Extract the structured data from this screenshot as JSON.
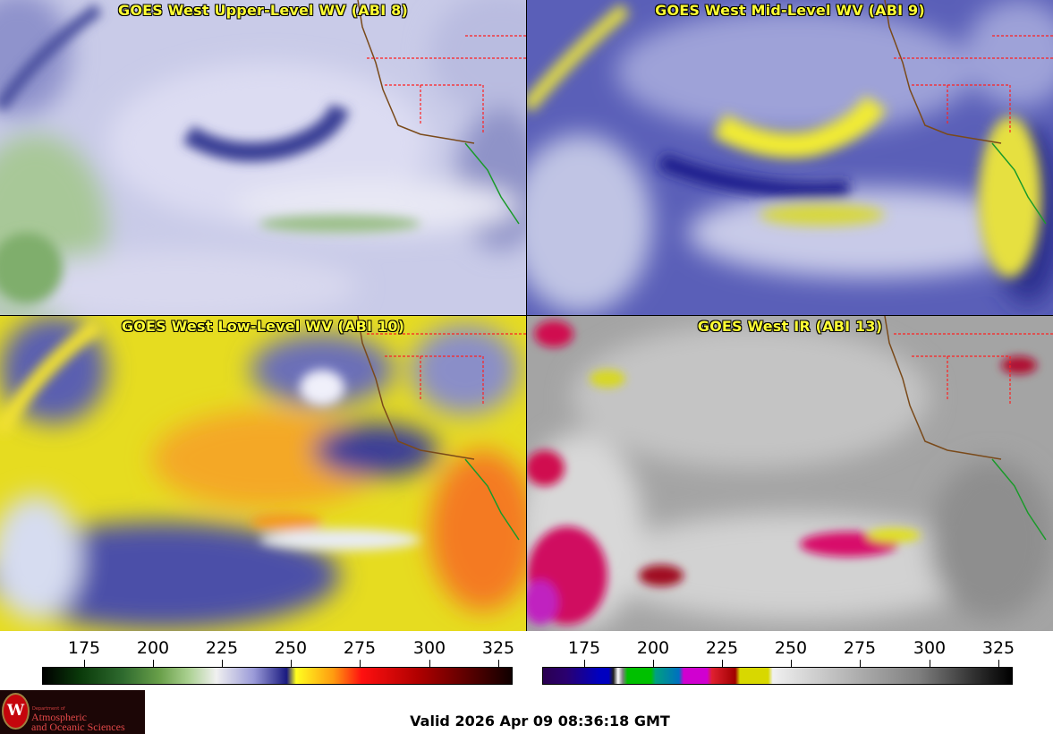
{
  "panels": [
    {
      "title": "GOES West Upper-Level WV (ABI 8)"
    },
    {
      "title": "GOES West Mid-Level WV (ABI 9)"
    },
    {
      "title": "GOES West Low-Level WV (ABI 10)"
    },
    {
      "title": "GOES West IR (ABI 13)"
    }
  ],
  "colorbars": [
    {
      "ticks": [
        "175",
        "200",
        "225",
        "250",
        "275",
        "300",
        "325"
      ],
      "range": [
        160,
        330
      ]
    },
    {
      "ticks": [
        "175",
        "200",
        "225",
        "250",
        "275",
        "300",
        "325"
      ],
      "range": [
        160,
        330
      ]
    }
  ],
  "logo": {
    "dept": "Department of",
    "line1": "Atmospheric",
    "line2": "and Oceanic Sciences",
    "seal": "W"
  },
  "valid_time": "Valid 2026 Apr 09 08:36:18 GMT",
  "colors": {
    "title_yellow": "#ffff33",
    "border_red": "#ff2020",
    "coast_brown": "#7a4a1a",
    "mexico_green": "#1a9a2a"
  }
}
